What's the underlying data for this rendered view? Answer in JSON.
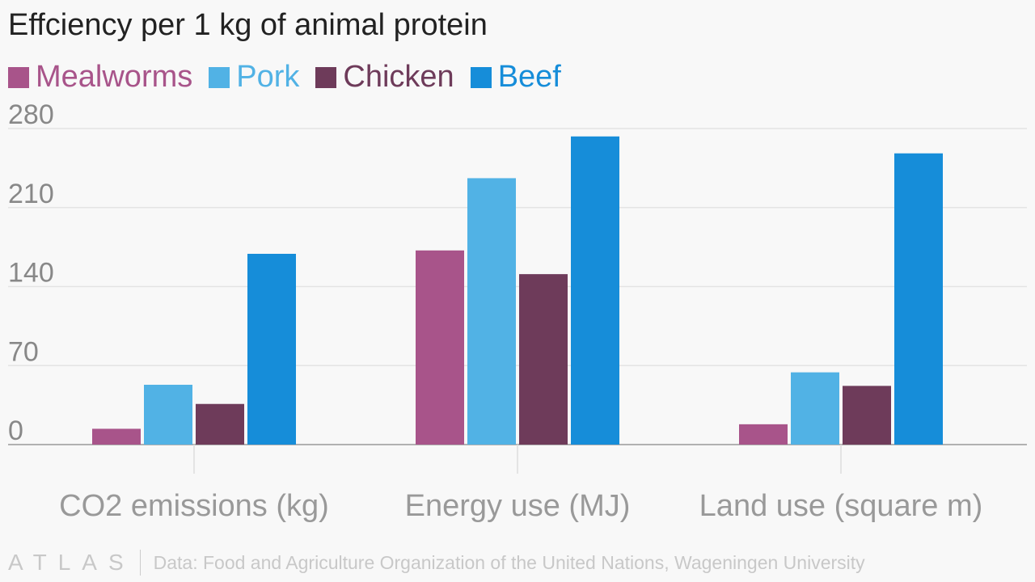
{
  "chart_data": {
    "type": "bar",
    "title": "Effciency per 1 kg of animal protein",
    "categories": [
      "CO2 emissions (kg)",
      "Energy use (MJ)",
      "Land use (square m)"
    ],
    "series": [
      {
        "name": "Mealworms",
        "color": "#a8548a",
        "values": [
          14,
          172,
          18
        ]
      },
      {
        "name": "Pork",
        "color": "#51b2e5",
        "values": [
          53,
          236,
          64
        ]
      },
      {
        "name": "Chicken",
        "color": "#6e3b5a",
        "values": [
          36,
          151,
          52
        ]
      },
      {
        "name": "Beef",
        "color": "#168dd9",
        "values": [
          169,
          273,
          258
        ]
      }
    ],
    "yticks": [
      0,
      70,
      140,
      210,
      280
    ],
    "ylim": [
      0,
      280
    ],
    "xlabel": "",
    "ylabel": "",
    "grid": true,
    "legend_position": "top-left"
  },
  "footer": {
    "logo": "ATLAS",
    "source": "Data: Food and Agriculture Organization of the United Nations, Wageningen University"
  }
}
